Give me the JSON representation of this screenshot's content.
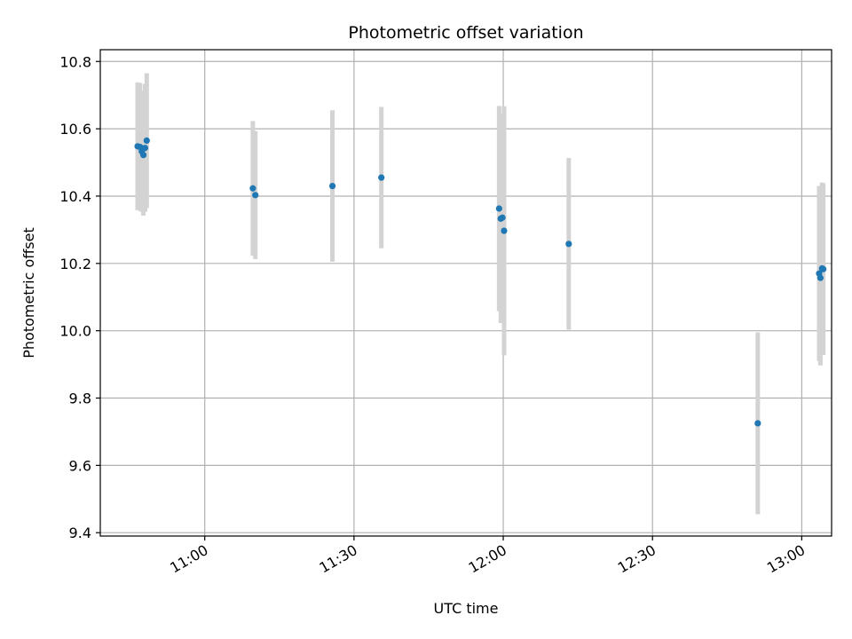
{
  "chart_data": {
    "type": "scatter",
    "title": "Photometric offset variation",
    "xlabel": "UTC time",
    "ylabel": "Photometric offset",
    "x_axis_type": "time",
    "xlim": [
      "10:39",
      "13:06"
    ],
    "ylim": [
      9.39,
      10.835
    ],
    "x_ticks": [
      "11:00",
      "11:30",
      "12:00",
      "12:30",
      "13:00"
    ],
    "y_ticks": [
      9.4,
      9.6,
      9.8,
      10.0,
      10.2,
      10.4,
      10.6,
      10.8
    ],
    "grid": true,
    "colors": {
      "point": "#1f77b4",
      "errorbar": "#d3d3d3",
      "grid": "#b0b0b0"
    },
    "points": [
      {
        "x": "10:46:30",
        "y": 10.548,
        "err": 0.19
      },
      {
        "x": "10:47:00",
        "y": 10.546,
        "err": 0.19
      },
      {
        "x": "10:47:20",
        "y": 10.533,
        "err": 0.18
      },
      {
        "x": "10:47:40",
        "y": 10.522,
        "err": 0.18
      },
      {
        "x": "10:48:00",
        "y": 10.543,
        "err": 0.19
      },
      {
        "x": "10:48:20",
        "y": 10.565,
        "err": 0.2
      },
      {
        "x": "11:09:40",
        "y": 10.423,
        "err": 0.2
      },
      {
        "x": "11:10:10",
        "y": 10.403,
        "err": 0.19
      },
      {
        "x": "11:25:40",
        "y": 10.43,
        "err": 0.225
      },
      {
        "x": "11:35:30",
        "y": 10.455,
        "err": 0.21
      },
      {
        "x": "11:59:10",
        "y": 10.363,
        "err": 0.305
      },
      {
        "x": "11:59:30",
        "y": 10.333,
        "err": 0.31
      },
      {
        "x": "11:59:50",
        "y": 10.336,
        "err": 0.31
      },
      {
        "x": "12:00:10",
        "y": 10.297,
        "err": 0.37
      },
      {
        "x": "12:13:10",
        "y": 10.258,
        "err": 0.255
      },
      {
        "x": "12:51:10",
        "y": 9.725,
        "err": 0.27
      },
      {
        "x": "13:03:30",
        "y": 10.17,
        "err": 0.26
      },
      {
        "x": "13:03:45",
        "y": 10.157,
        "err": 0.26
      },
      {
        "x": "13:04:05",
        "y": 10.185,
        "err": 0.255
      },
      {
        "x": "13:04:20",
        "y": 10.183,
        "err": 0.255
      }
    ]
  }
}
